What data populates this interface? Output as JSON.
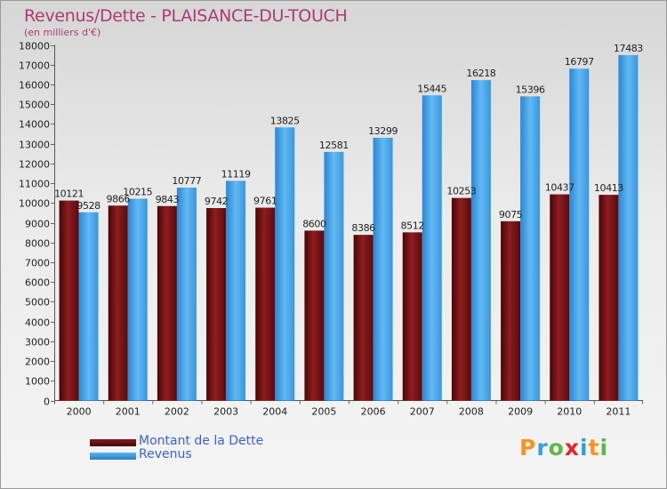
{
  "chart_data": {
    "type": "bar",
    "title": "Revenus/Dette - PLAISANCE-DU-TOUCH",
    "subtitle": "(en milliers d'€)",
    "categories": [
      "2000",
      "2001",
      "2002",
      "2003",
      "2004",
      "2005",
      "2006",
      "2007",
      "2008",
      "2009",
      "2010",
      "2011"
    ],
    "series": [
      {
        "name": "Montant de la Dette",
        "color": "#6b0f10",
        "values": [
          10121,
          9866,
          9843,
          9742,
          9761,
          8600,
          8386,
          8512,
          10253,
          9075,
          10437,
          10413
        ],
        "labels": [
          "10121",
          "9866",
          "9843",
          "9742",
          "9761",
          "8600",
          "8386",
          "8512",
          "10253",
          "9075",
          "10437",
          "10413"
        ]
      },
      {
        "name": "Revenus",
        "color": "#3d9be0",
        "values": [
          9528,
          10215,
          10777,
          11119,
          13825,
          12581,
          13299,
          15445,
          16218,
          15396,
          16797,
          17483
        ],
        "labels": [
          "9528",
          "10215",
          "10777",
          "11119",
          "13825",
          "12581",
          "13299",
          "15445",
          "16218",
          "15396",
          "16797",
          "17483"
        ]
      }
    ],
    "ylim": [
      0,
      18000
    ],
    "ytick_step": 1000,
    "grid": false,
    "legend": "bottom-left"
  },
  "brand": {
    "letters": [
      "P",
      "r",
      "o",
      "x",
      "i",
      "t",
      "i"
    ],
    "colors": [
      "#f7941d",
      "#37a0dc",
      "#5fb845",
      "#e2262e",
      "#2f9fd8",
      "#f7941d",
      "#5fb845"
    ]
  }
}
